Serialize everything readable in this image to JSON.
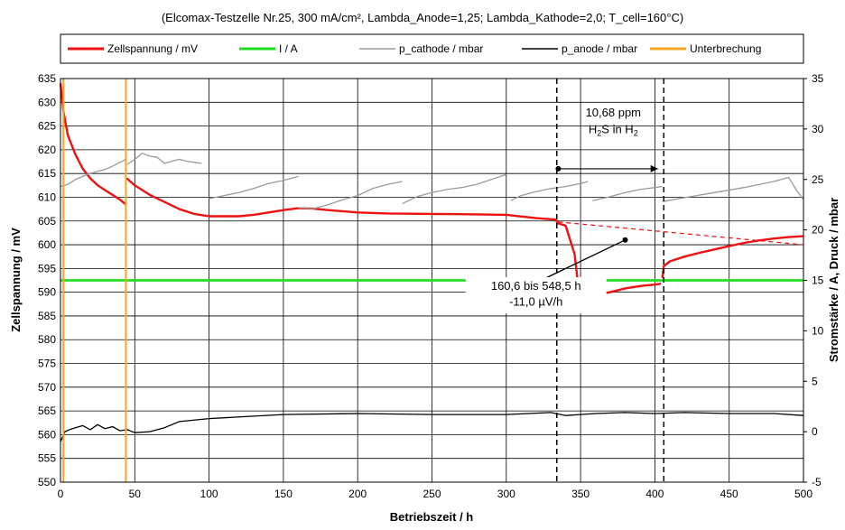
{
  "chart_data": {
    "type": "line",
    "title": "(Elcomax-Testzelle Nr.25, 300 mA/cm², Lambda_Anode=1,25; Lambda_Kathode=2,0; T_cell=160°C)",
    "xlabel": "Betriebszeit / h",
    "ylabel_left": "Zellspannung / mV",
    "ylabel_right": "Stromstärke / A, Druck / mbar",
    "xlim": [
      0,
      500
    ],
    "ylim_left": [
      550,
      635
    ],
    "ylim_right": [
      -5,
      35
    ],
    "x_ticks": [
      "0",
      "50",
      "100",
      "150",
      "200",
      "250",
      "300",
      "350",
      "400",
      "450",
      "500"
    ],
    "y_left_ticks": [
      "550",
      "555",
      "560",
      "565",
      "570",
      "575",
      "580",
      "585",
      "590",
      "595",
      "600",
      "605",
      "610",
      "615",
      "620",
      "625",
      "630",
      "635"
    ],
    "y_right_ticks": [
      "-5",
      "0",
      "5",
      "10",
      "15",
      "20",
      "25",
      "30",
      "35"
    ],
    "grid": true,
    "legend_position": "top",
    "series": [
      {
        "name": "Zellspannung / mV",
        "axis": "left",
        "color": "#ee1111",
        "segments": [
          {
            "x": [
              0,
              2,
              5,
              10,
              15,
              20,
              25,
              30,
              35,
              40,
              44
            ],
            "y": [
              634,
              628,
              623,
              619,
              616,
              614,
              612.5,
              611.5,
              610.5,
              609.5,
              608.5
            ]
          },
          {
            "x": [
              44.5,
              50,
              60,
              70,
              80,
              90,
              100,
              110,
              120,
              130,
              140,
              150,
              160,
              170,
              180,
              200,
              220,
              250,
              280,
              300,
              320,
              333,
              335,
              340,
              346,
              348,
              352,
              360,
              370,
              380,
              390,
              400,
              404
            ],
            "y": [
              614,
              612.5,
              610.5,
              609,
              607.5,
              606.5,
              606,
              606,
              606,
              606.3,
              606.8,
              607.3,
              607.7,
              607.6,
              607.3,
              606.8,
              606.6,
              606.5,
              606.4,
              606.3,
              605.6,
              605.3,
              604.5,
              604,
              598,
              592.5,
              590,
              589.5,
              590,
              590.8,
              591.3,
              591.6,
              591.8
            ]
          },
          {
            "x": [
              405,
              406,
              410,
              420,
              430,
              440,
              450,
              460,
              470,
              480,
              490,
              500
            ],
            "y": [
              593,
              595.5,
              596.5,
              597.5,
              598.3,
              599,
              599.7,
              600.4,
              600.9,
              601.3,
              601.6,
              601.8
            ]
          }
        ]
      },
      {
        "name": "I / A",
        "axis": "right",
        "color": "#22dd22",
        "segments": [
          {
            "x": [
              0,
              500
            ],
            "y": [
              15,
              15
            ]
          }
        ]
      },
      {
        "name": "p_cathode / mbar",
        "axis": "right",
        "color": "#9a9a9a",
        "segments": [
          {
            "x": [
              0,
              5,
              10,
              15,
              20,
              25,
              30,
              35,
              40,
              44
            ],
            "y": [
              24.3,
              24.5,
              25,
              25.3,
              25.6,
              25.8,
              26,
              26.3,
              26.7,
              27
            ]
          },
          {
            "x": [
              45,
              50,
              55,
              60,
              65,
              70,
              75,
              80,
              85,
              90,
              95
            ],
            "y": [
              26.5,
              27,
              27.6,
              27.3,
              27.2,
              26.6,
              26.8,
              27,
              26.8,
              26.7,
              26.6
            ]
          },
          {
            "x": [
              100,
              110,
              120,
              130,
              140,
              150,
              160
            ],
            "y": [
              23.1,
              23.4,
              23.7,
              24.1,
              24.6,
              24.9,
              25.3
            ]
          },
          {
            "x": [
              160,
              170,
              180,
              190,
              200,
              210,
              220,
              230
            ],
            "y": [
              22.2,
              22.1,
              22.5,
              23,
              23.4,
              24.1,
              24.5,
              24.8
            ]
          },
          {
            "x": [
              230,
              240,
              250,
              260,
              270,
              280,
              290,
              300
            ],
            "y": [
              22.6,
              23.3,
              23.7,
              24,
              24.2,
              24.5,
              25,
              25.5
            ]
          },
          {
            "x": [
              303,
              310,
              320,
              330,
              340,
              350,
              355
            ],
            "y": [
              22.9,
              23.4,
              23.8,
              24.1,
              24.3,
              24.6,
              24.8
            ]
          },
          {
            "x": [
              358,
              370,
              380,
              390,
              400,
              405
            ],
            "y": [
              22.9,
              23.3,
              23.7,
              24,
              24.2,
              24.3
            ]
          },
          {
            "x": [
              405,
              420,
              440,
              460,
              480,
              490,
              495,
              500
            ],
            "y": [
              22.8,
              23.2,
              23.7,
              24.2,
              24.8,
              25.2,
              24,
              23
            ]
          }
        ]
      },
      {
        "name": "p_anode / mbar",
        "axis": "right",
        "color": "#000000",
        "segments": [
          {
            "x": [
              0,
              3,
              6,
              10,
              15,
              20,
              25,
              30,
              35,
              40,
              45,
              50,
              60,
              70,
              80,
              100,
              150,
              200,
              250,
              300,
              330,
              340,
              360,
              380,
              400,
              420,
              450,
              480,
              500
            ],
            "y": [
              -1,
              0,
              0.2,
              0.4,
              0.6,
              0.2,
              0.7,
              0.3,
              0.5,
              0.1,
              0.2,
              -0.1,
              0,
              0.4,
              1,
              1.3,
              1.7,
              1.8,
              1.7,
              1.7,
              1.9,
              1.6,
              1.8,
              1.9,
              1.8,
              1.9,
              1.8,
              1.8,
              1.6
            ]
          }
        ]
      },
      {
        "name": "Unterbrechung",
        "axis": "left",
        "color": "#f5a623",
        "vlines": [
          2,
          44
        ]
      }
    ],
    "reference_lines": {
      "dashed_vertical_black": [
        334,
        406
      ],
      "dashed_trend_red": {
        "x": [
          335,
          500
        ],
        "y": [
          604.8,
          600
        ]
      }
    },
    "annotations": [
      {
        "text": "10,68 ppm",
        "x": 372,
        "y": 627
      },
      {
        "text_html": "H2S in H2",
        "x": 372,
        "y": 623.5,
        "main": "H",
        "sub1": "2",
        "mid": "S in H",
        "sub2": "2"
      },
      {
        "arrow_text": "",
        "x1": 335,
        "x2": 402,
        "y": 616,
        "axis": "left"
      },
      {
        "text": "160,6 bis 548,5 h",
        "x": 320,
        "y": 590.5
      },
      {
        "text": "-11,0 µV/h",
        "x": 320,
        "y": 587.2
      },
      {
        "leader_from": [
          320,
          592
        ],
        "leader_to": [
          380,
          601
        ]
      }
    ]
  }
}
